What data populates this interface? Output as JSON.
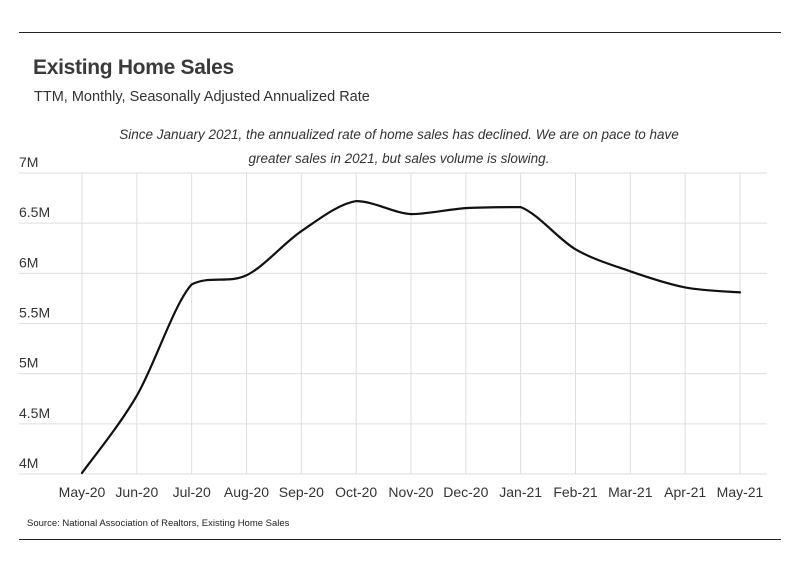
{
  "chart_data": {
    "type": "line",
    "title": "Existing Home Sales",
    "subtitle": "TTM, Monthly, Seasonally Adjusted Annualized Rate",
    "annotation": "Since January 2021, the annualized rate of home sales has declined. We are on pace to have greater sales in 2021, but sales volume is slowing.",
    "source": "Source:  National Association of Realtors, Existing Home Sales",
    "xlabel": "",
    "ylabel": "",
    "categories": [
      "May-20",
      "Jun-20",
      "Jul-20",
      "Aug-20",
      "Sep-20",
      "Oct-20",
      "Nov-20",
      "Dec-20",
      "Jan-21",
      "Feb-21",
      "Mar-21",
      "Apr-21",
      "May-21"
    ],
    "series": [
      {
        "values": [
          4010000,
          4780000,
          5890000,
          5980000,
          6420000,
          6720000,
          6590000,
          6650000,
          6660000,
          6240000,
          6020000,
          5860000,
          5810000
        ]
      }
    ],
    "ylim": [
      4000000,
      7000000
    ],
    "yticks": [
      {
        "value": 4000000,
        "label": "4M"
      },
      {
        "value": 4500000,
        "label": "4.5M"
      },
      {
        "value": 5000000,
        "label": "5M"
      },
      {
        "value": 5500000,
        "label": "5.5M"
      },
      {
        "value": 6000000,
        "label": "6M"
      },
      {
        "value": 6500000,
        "label": "6.5M"
      },
      {
        "value": 7000000,
        "label": "7M"
      }
    ],
    "grid": true,
    "line_color": "#111111",
    "grid_color": "#dedede"
  }
}
